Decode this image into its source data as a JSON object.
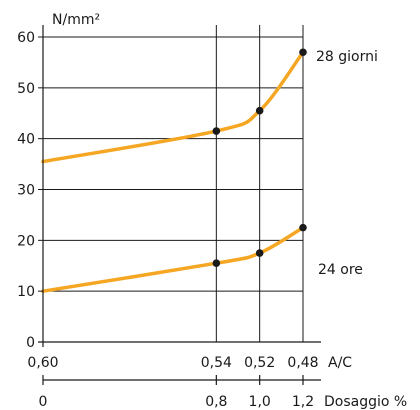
{
  "chart_data": {
    "type": "line",
    "ylabel": "N/mm²",
    "ylim": [
      0,
      60
    ],
    "yticks": [
      0,
      10,
      20,
      30,
      40,
      50,
      60
    ],
    "x_axis_ac": {
      "label": "A/C",
      "ticks": [
        "0,60",
        "0,54",
        "0,52",
        "0,48"
      ]
    },
    "x_axis_dosage": {
      "label": "Dosaggio %",
      "xlim": [
        0,
        1.2
      ],
      "ticks": [
        "0",
        "0,8",
        "1,0",
        "1,2"
      ]
    },
    "x": [
      0,
      0.8,
      1.0,
      1.2
    ],
    "grid": "vertical lines at each tick, horizontal lines at each y tick",
    "series": [
      {
        "name": "28 giorni",
        "values": [
          35.5,
          41.5,
          45.5,
          57
        ],
        "markers_at": [
          0.8,
          1.0,
          1.2
        ]
      },
      {
        "name": "24 ore",
        "values": [
          10,
          15.5,
          17.5,
          22.5
        ],
        "markers_at": [
          0.8,
          1.0,
          1.2
        ]
      }
    ],
    "line_color": "#f5a623",
    "marker_color": "#1a1a1a"
  }
}
